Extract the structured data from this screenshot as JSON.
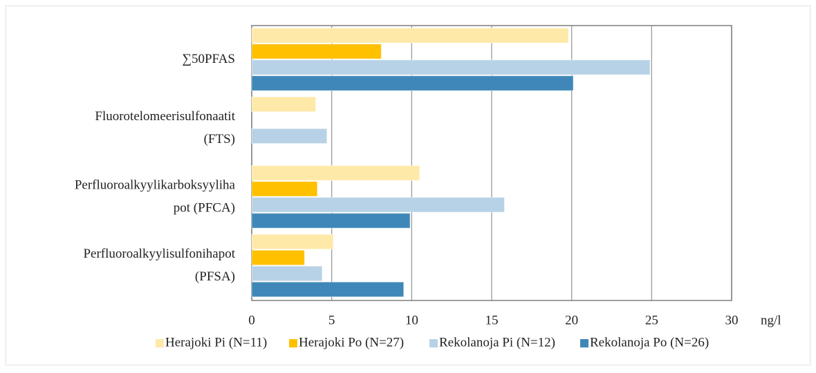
{
  "chart_data": {
    "type": "bar",
    "orientation": "horizontal",
    "categories": [
      [
        "∑50PFAS"
      ],
      [
        "Fluorotelomeerisulfonaatit",
        "(FTS)"
      ],
      [
        "Perfluoroalkyylikarboksyyliha",
        "pot (PFCA)"
      ],
      [
        "Perfluoroalkyylisulfonihapot",
        "(PFSA)"
      ]
    ],
    "series": [
      {
        "name": "Herajoki Pi (N=11)",
        "color": "#FFE9A8",
        "values": [
          19.8,
          4.0,
          10.5,
          5.1
        ]
      },
      {
        "name": "Herajoki Po (N=27)",
        "color": "#FFC000",
        "values": [
          8.1,
          null,
          4.1,
          3.3
        ]
      },
      {
        "name": "Rekolanoja Pi (N=12)",
        "color": "#B7D2E6",
        "values": [
          24.9,
          4.7,
          15.8,
          4.4
        ]
      },
      {
        "name": "Rekolanoja Po (N=26)",
        "color": "#3F87B8",
        "values": [
          20.1,
          null,
          9.9,
          9.5
        ]
      }
    ],
    "xlabel": "ng/l",
    "xlim": [
      0,
      30
    ],
    "xticks": [
      0,
      5,
      10,
      15,
      20,
      25,
      30
    ],
    "grid": true,
    "legend": "bottom"
  }
}
